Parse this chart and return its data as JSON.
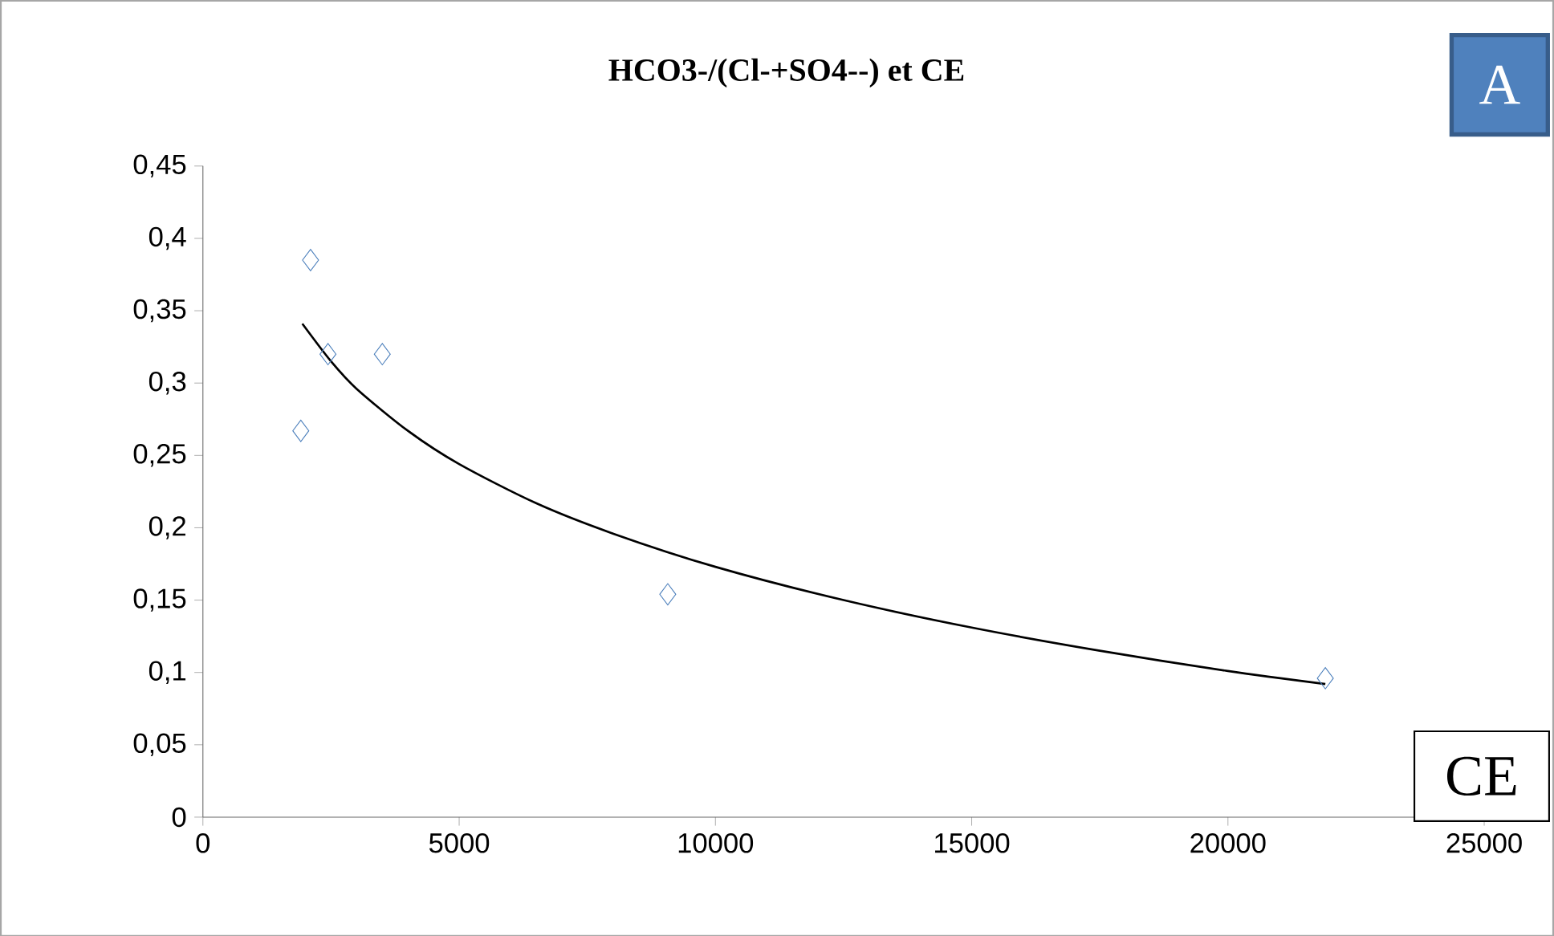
{
  "chart_data": {
    "type": "scatter",
    "title": "HCO3-/(Cl-+SO4--) et CE",
    "xlabel": "CE",
    "annotations": [
      "A"
    ],
    "xlim": [
      0,
      25000
    ],
    "ylim": [
      0,
      0.45
    ],
    "xticks": [
      0,
      5000,
      10000,
      15000,
      20000,
      25000
    ],
    "yticks": [
      0,
      {
        "value": 0.05,
        "label": "0,05"
      },
      {
        "value": 0.1,
        "label": "0,1"
      },
      {
        "value": 0.15,
        "label": "0,15"
      },
      {
        "value": 0.2,
        "label": "0,2"
      },
      {
        "value": 0.25,
        "label": "0,25"
      },
      {
        "value": 0.3,
        "label": "0,3"
      },
      {
        "value": 0.35,
        "label": "0,35"
      },
      {
        "value": 0.4,
        "label": "0,4"
      },
      {
        "value": 0.45,
        "label": "0,45"
      }
    ],
    "series": [
      {
        "color": "#4a7ebb",
        "marker": "diamond",
        "x": [
          1910,
          2100,
          2440,
          3500,
          9070,
          21900
        ],
        "values": [
          0.267,
          0.385,
          0.32,
          0.32,
          0.154,
          0.096
        ]
      },
      {
        "type": "line",
        "color": "#000000",
        "marker": "none",
        "x": [
          1940,
          2500,
          3000,
          4000,
          5000,
          6500,
          8000,
          10000,
          12500,
          15000,
          17500,
          20000,
          21900
        ],
        "values": [
          0.341,
          0.315,
          0.296,
          0.267,
          0.244,
          0.217,
          0.196,
          0.173,
          0.15,
          0.131,
          0.115,
          0.101,
          0.092
        ]
      }
    ]
  }
}
